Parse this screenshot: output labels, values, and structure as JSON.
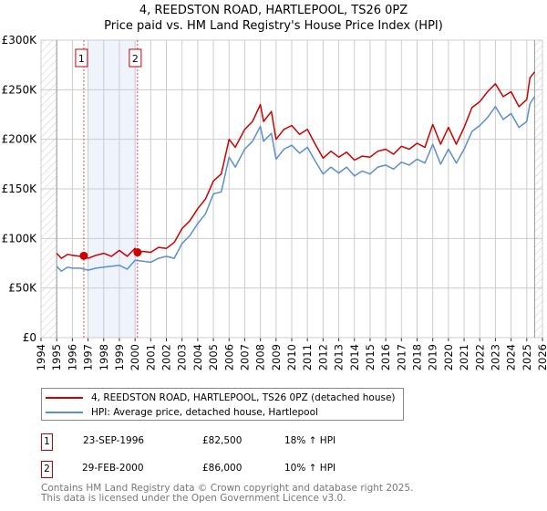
{
  "title": "4, REEDSTON ROAD, HARTLEPOOL, TS26 0PZ",
  "subtitle": "Price paid vs. HM Land Registry's House Price Index (HPI)",
  "colors": {
    "property": "#cc0000",
    "hpi": "#5b8fd0",
    "shade": "#eef3fc",
    "grid": "#cccccc"
  },
  "chart_data": {
    "type": "line",
    "xlim": [
      1994,
      2026
    ],
    "ylim": [
      0,
      300000
    ],
    "x_ticks": [
      "1994",
      "1995",
      "1996",
      "1997",
      "1998",
      "1999",
      "2000",
      "2001",
      "2002",
      "2003",
      "2004",
      "2005",
      "2006",
      "2007",
      "2008",
      "2009",
      "2010",
      "2011",
      "2012",
      "2013",
      "2014",
      "2015",
      "2016",
      "2017",
      "2018",
      "2019",
      "2020",
      "2021",
      "2022",
      "2023",
      "2024",
      "2025",
      "2026"
    ],
    "y_ticks": [
      {
        "v": 0,
        "label": "£0"
      },
      {
        "v": 50000,
        "label": "£50K"
      },
      {
        "v": 100000,
        "label": "£100K"
      },
      {
        "v": 150000,
        "label": "£150K"
      },
      {
        "v": 200000,
        "label": "£200K"
      },
      {
        "v": 250000,
        "label": "£250K"
      },
      {
        "v": 300000,
        "label": "£300K"
      }
    ],
    "grid": true,
    "data_range": [
      1995,
      2025.5
    ],
    "shaded_period": [
      1997.0,
      2000.16
    ],
    "series": [
      {
        "name": "4, REEDSTON ROAD, HARTLEPOOL, TS26 0PZ (detached house)",
        "color": "#cc0000",
        "x": [
          1995,
          1995.3,
          1995.7,
          1996,
          1996.5,
          1996.73,
          1997,
          1997.5,
          1998,
          1998.5,
          1999,
          1999.5,
          2000,
          2000.16,
          2000.5,
          2001,
          2001.5,
          2002,
          2002.5,
          2003,
          2003.5,
          2004,
          2004.5,
          2005,
          2005.5,
          2006,
          2006.4,
          2007,
          2007.5,
          2008,
          2008.2,
          2008.7,
          2009,
          2009.5,
          2010,
          2010.5,
          2011,
          2011.5,
          2012,
          2012.5,
          2013,
          2013.5,
          2014,
          2014.5,
          2015,
          2015.5,
          2016,
          2016.5,
          2017,
          2017.5,
          2018,
          2018.5,
          2019,
          2019.5,
          2020,
          2020.5,
          2021,
          2021.5,
          2022,
          2022.5,
          2023,
          2023.5,
          2024,
          2024.5,
          2025,
          2025.2,
          2025.5
        ],
        "values": [
          85000,
          80000,
          84000,
          83000,
          82000,
          82500,
          80000,
          83000,
          85000,
          82000,
          88000,
          82000,
          90000,
          86000,
          87000,
          86000,
          91000,
          90000,
          96000,
          110000,
          118000,
          130000,
          140000,
          158000,
          165000,
          200000,
          192000,
          210000,
          218000,
          235000,
          218000,
          228000,
          200000,
          210000,
          214000,
          205000,
          210000,
          195000,
          181000,
          188000,
          182000,
          187000,
          179000,
          183000,
          182000,
          188000,
          190000,
          185000,
          193000,
          190000,
          196000,
          192000,
          215000,
          195000,
          212000,
          195000,
          212000,
          232000,
          238000,
          248000,
          256000,
          243000,
          248000,
          233000,
          240000,
          262000,
          268000
        ]
      },
      {
        "name": "HPI: Average price, detached house, Hartlepool",
        "color": "#5b8fd0",
        "x": [
          1995,
          1995.3,
          1995.7,
          1996,
          1996.5,
          1997,
          1997.5,
          1998,
          1998.5,
          1999,
          1999.5,
          2000,
          2000.5,
          2001,
          2001.5,
          2002,
          2002.5,
          2003,
          2003.5,
          2004,
          2004.5,
          2005,
          2005.5,
          2006,
          2006.4,
          2007,
          2007.5,
          2008,
          2008.2,
          2008.7,
          2009,
          2009.5,
          2010,
          2010.5,
          2011,
          2011.5,
          2012,
          2012.5,
          2013,
          2013.5,
          2014,
          2014.5,
          2015,
          2015.5,
          2016,
          2016.5,
          2017,
          2017.5,
          2018,
          2018.5,
          2019,
          2019.5,
          2020,
          2020.5,
          2021,
          2021.5,
          2022,
          2022.5,
          2023,
          2023.5,
          2024,
          2024.5,
          2025,
          2025.2,
          2025.5
        ],
        "values": [
          72000,
          67000,
          71000,
          70000,
          70000,
          68000,
          70000,
          71000,
          72000,
          73000,
          69000,
          78000,
          77000,
          76000,
          80000,
          82000,
          80000,
          95000,
          103000,
          115000,
          125000,
          145000,
          147000,
          182000,
          172000,
          190000,
          198000,
          213000,
          198000,
          206000,
          180000,
          190000,
          194000,
          186000,
          192000,
          178000,
          165000,
          172000,
          166000,
          172000,
          163000,
          168000,
          165000,
          172000,
          174000,
          170000,
          177000,
          174000,
          180000,
          176000,
          195000,
          175000,
          190000,
          176000,
          190000,
          208000,
          214000,
          222000,
          233000,
          220000,
          226000,
          212000,
          218000,
          236000,
          243000
        ]
      }
    ],
    "sales": [
      {
        "n": "1",
        "x": 1996.73,
        "price": 82500
      },
      {
        "n": "2",
        "x": 2000.16,
        "price": 86000
      }
    ]
  },
  "legend": {
    "property": "4, REEDSTON ROAD, HARTLEPOOL, TS26 0PZ (detached house)",
    "hpi": "HPI: Average price, detached house, Hartlepool"
  },
  "transactions": [
    {
      "n": "1",
      "date": "23-SEP-1996",
      "price": "£82,500",
      "hpi": "18% ↑ HPI"
    },
    {
      "n": "2",
      "date": "29-FEB-2000",
      "price": "£86,000",
      "hpi": "10% ↑ HPI"
    }
  ],
  "footer": {
    "line1": "Contains HM Land Registry data © Crown copyright and database right 2025.",
    "line2": "This data is licensed under the Open Government Licence v3.0."
  }
}
